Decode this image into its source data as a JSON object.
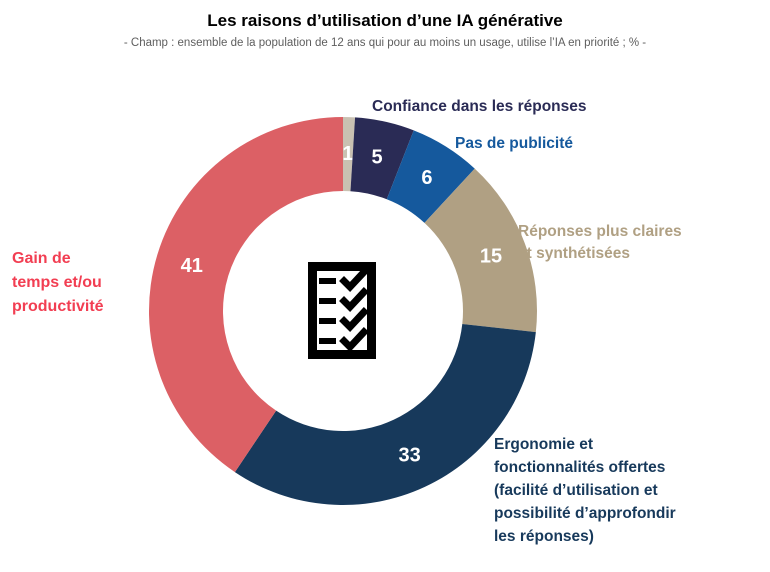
{
  "header": {
    "title": "Les raisons d’utilisation d’une IA générative",
    "subtitle": "- Champ : ensemble de la population de 12 ans qui pour au moins un usage, utilise l’IA en priorité ; % -"
  },
  "chart_data": {
    "type": "pie",
    "variant": "donut",
    "title": "Les raisons d’utilisation d’une IA générative",
    "unit": "%",
    "direction": "clockwise",
    "start_angle_deg": 0,
    "total": 101,
    "center_icon": "checklist-icon",
    "value_label_color": "#FFFFFF",
    "slices": [
      {
        "label": "",
        "value": 1,
        "color": "#C9C1B2"
      },
      {
        "label": "Confiance dans les réponses",
        "value": 5,
        "color": "#2A2B55"
      },
      {
        "label": "Pas de publicité",
        "value": 6,
        "color": "#15599D"
      },
      {
        "label": "Réponses plus claires et synthétisées",
        "value": 15,
        "color": "#B0A083"
      },
      {
        "label": "Ergonomie et fonctionnalités offertes (facilité d’utilisation et possibilité d’approfondir les réponses)",
        "value": 33,
        "color": "#17395B"
      },
      {
        "label": "Gain de temps et/ou productivité",
        "value": 41,
        "color": "#DC6065"
      }
    ]
  },
  "callouts": {
    "confiance": {
      "text": "Confiance dans les réponses",
      "color": "#2A2B55"
    },
    "pas_de_publicite": {
      "text": "Pas de publicité",
      "color": "#15599D"
    },
    "reponses_claires": {
      "text": "Réponses plus claires\net synthétisées",
      "color": "#B0A083"
    },
    "ergonomie": {
      "text": "Ergonomie et\nfonctionnalités offertes\n(facilité d’utilisation et\npossibilité d’approfondir\nles réponses)",
      "color": "#17395B"
    },
    "gain_temps": {
      "text": "Gain de\ntemps et/ou\nproductivité",
      "color": "#F23E52"
    }
  }
}
